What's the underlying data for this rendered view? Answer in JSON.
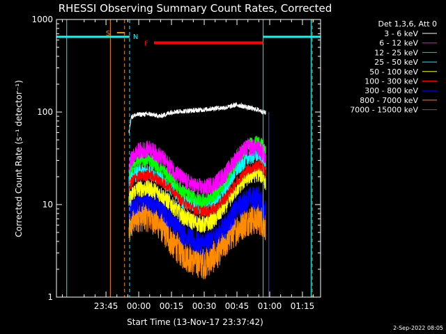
{
  "chart_data": {
    "type": "line",
    "title": "RHESSI Observing Summary Count Rates, Corrected",
    "xlabel": "Start Time (13-Nov-17 23:37:42)",
    "ylabel": "Corrected Count Rate (s⁻¹ detector⁻¹)",
    "yscale": "log",
    "ylim": [
      1,
      1000
    ],
    "xlim_minutes": [
      -37.7,
      83.3
    ],
    "x_tick_labels": [
      "23:45",
      "00:00",
      "00:15",
      "00:30",
      "00:45",
      "01:00",
      "01:15"
    ],
    "x_tick_minutes": [
      -15,
      0,
      15,
      30,
      45,
      60,
      75
    ],
    "y_tick_labels": [
      "1",
      "10",
      "100",
      "1000"
    ],
    "y_tick_values": [
      1,
      10,
      100,
      1000
    ],
    "legend_title": "Det 1,3,6, Att 0",
    "timestamp": "2-Sep-2022 08:05",
    "flag_labels": {
      "saa": "S",
      "night": "N",
      "flare": "F"
    },
    "x_minutes": [
      -4.5,
      -3.5,
      -2,
      0,
      5,
      10,
      15,
      20,
      25,
      30,
      35,
      40,
      45,
      50,
      55,
      57,
      58.2
    ],
    "series": [
      {
        "name": "3 - 6 keV",
        "color": "#ffffff",
        "noise": 0.06,
        "values": [
          60,
          88,
          92,
          94,
          95,
          90,
          100,
          102,
          104,
          106,
          110,
          112,
          120,
          112,
          105,
          100,
          98
        ]
      },
      {
        "name": "6 - 12 keV",
        "color": "#ff00ff",
        "noise": 0.22,
        "values": [
          25,
          30,
          34,
          38,
          40,
          33,
          25,
          19,
          16,
          15,
          17,
          22,
          33,
          42,
          40,
          36,
          30
        ]
      },
      {
        "name": "12 - 25 keV",
        "color": "#00ff00",
        "noise": 0.18,
        "values": [
          21,
          24,
          27,
          30,
          31,
          25,
          19,
          14,
          12,
          11,
          13,
          18,
          30,
          44,
          47,
          42,
          35
        ]
      },
      {
        "name": "25 - 50 keV",
        "color": "#00ffff",
        "noise": 0.2,
        "values": [
          17,
          19,
          21,
          22,
          23,
          19,
          15,
          11,
          10,
          9,
          11,
          15,
          24,
          32,
          35,
          31,
          27
        ]
      },
      {
        "name": "50 - 100 keV",
        "color": "#ffff00",
        "noise": 0.22,
        "values": [
          11,
          12,
          14,
          15,
          15,
          13,
          10,
          7.5,
          6.5,
          6,
          7,
          10,
          15,
          20,
          22,
          20,
          17
        ]
      },
      {
        "name": "100 - 300 keV",
        "color": "#ff0000",
        "noise": 0.15,
        "values": [
          15,
          17,
          19,
          20,
          21,
          18,
          15,
          11,
          9,
          8.5,
          9,
          12,
          18,
          24,
          27,
          25,
          22
        ]
      },
      {
        "name": "300 - 800 keV",
        "color": "#0000ff",
        "noise": 0.3,
        "values": [
          8,
          9,
          10,
          11,
          11.5,
          9,
          7,
          5,
          4,
          3.8,
          4.5,
          6,
          9,
          11.5,
          12,
          10,
          8
        ]
      },
      {
        "name": "800 - 7000 keV",
        "color": "#ff8c00",
        "noise": 0.4,
        "values": [
          5,
          6,
          7,
          7.5,
          7.5,
          6,
          4,
          3,
          2.5,
          2.3,
          2.8,
          4,
          5.5,
          6.8,
          7,
          6.5,
          6
        ]
      },
      {
        "name": "7000 - 15000 keV",
        "color": "#7a6a00",
        "noise": 0,
        "values": []
      }
    ],
    "flags": {
      "saa_lines_minutes": [
        -13,
        -6.5
      ],
      "saa_bar_minutes": [
        -10,
        -6.5
      ],
      "night_lines_minutes": [
        -33,
        -4.2,
        57,
        79
      ],
      "night_bars_minutes": [
        [
          -37.7,
          -4.2
        ],
        [
          57,
          83.3
        ]
      ],
      "flare_bar_minutes": [
        7,
        57
      ],
      "flare_bar_level": 560,
      "night_bar_level": 650,
      "saa_bar_level": 720,
      "night_end_orange_minutes": 79.5,
      "data_end_blue_minutes": 59.6
    }
  }
}
